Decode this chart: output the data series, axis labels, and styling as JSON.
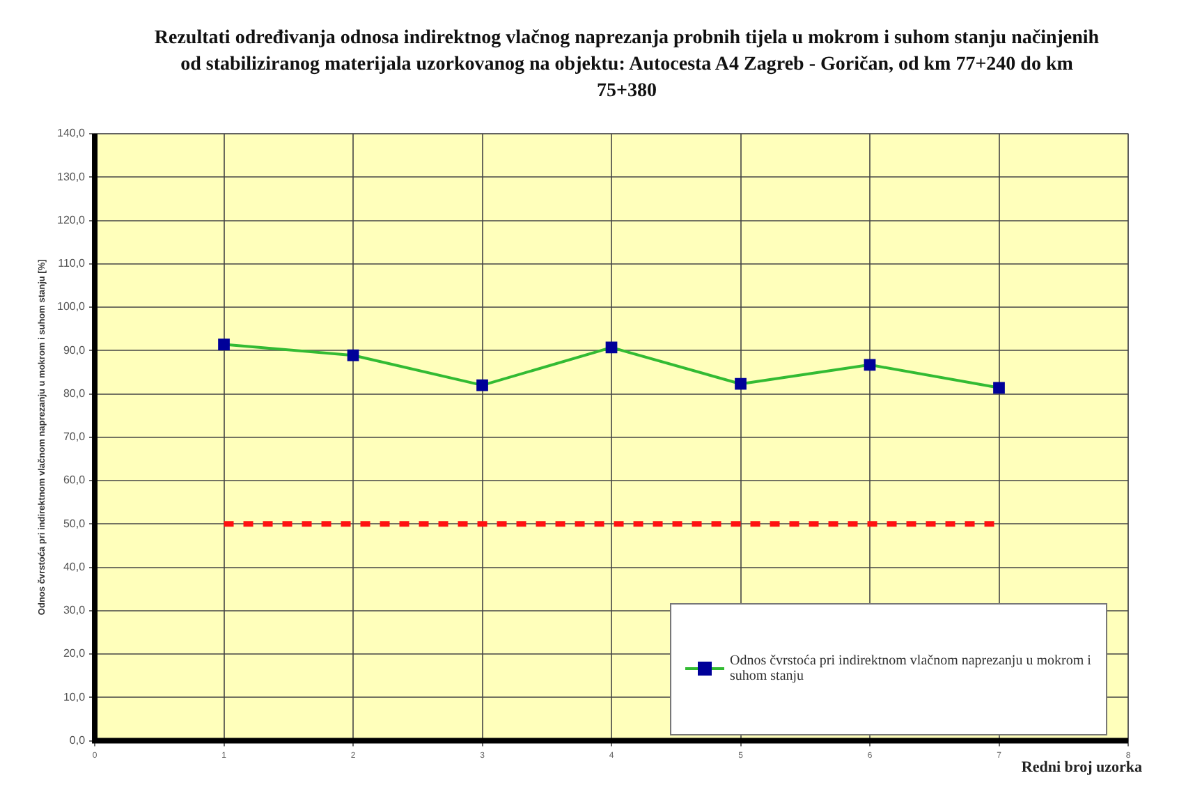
{
  "chart_data": {
    "type": "line",
    "title": "Rezultati određivanja odnosa indirektnog vlačnog naprezanja probnih tijela u mokrom i suhom stanju načinjenih od stabiliziranog materijala uzorkovanog na objektu: Autocesta A4 Zagreb - Goričan, od km 77+240 do km 75+380",
    "xlabel": "Redni broj uzorka",
    "ylabel": "Odnos čvrstoća pri indirektnom vlačnom naprezanju u mokrom i suhom stanju [%]",
    "x": [
      1,
      2,
      3,
      4,
      5,
      6,
      7
    ],
    "series": [
      {
        "name": "Odnos čvrstoća pri indirektnom vlačnom naprezanju u mokrom i suhom stanju",
        "color": "#33bb33",
        "values": [
          91.4,
          88.9,
          82.0,
          90.7,
          82.3,
          86.7,
          81.4
        ],
        "colors": [
          "#000099",
          "#000099",
          "#000099",
          "#000099",
          "#000099",
          "#000099",
          "#000099"
        ],
        "marker": "square",
        "line_style": "solid"
      },
      {
        "color": "#ff1111",
        "values": [
          50,
          50,
          50,
          50,
          50,
          50,
          50
        ],
        "marker": "none",
        "line_style": "dashed"
      }
    ],
    "xlim": [
      0,
      8
    ],
    "xticks": [
      0,
      1,
      2,
      3,
      4,
      5,
      6,
      7,
      8
    ],
    "ylim": [
      0,
      140
    ],
    "yticks": [
      {
        "value": 0,
        "label": "0,0"
      },
      {
        "value": 10,
        "label": "10,0"
      },
      {
        "value": 20,
        "label": "20,0"
      },
      {
        "value": 30,
        "label": "30,0"
      },
      {
        "value": 40,
        "label": "40,0"
      },
      {
        "value": 50,
        "label": "50,0"
      },
      {
        "value": 60,
        "label": "60,0"
      },
      {
        "value": 70,
        "label": "70,0"
      },
      {
        "value": 80,
        "label": "80,0"
      },
      {
        "value": 90,
        "label": "90,0"
      },
      {
        "value": 100,
        "label": "100,0"
      },
      {
        "value": 110,
        "label": "110,0"
      },
      {
        "value": 120,
        "label": "120,0"
      },
      {
        "value": 130,
        "label": "130,0"
      },
      {
        "value": 140,
        "label": "140,0"
      }
    ],
    "grid": true,
    "legend": "bottom right"
  }
}
